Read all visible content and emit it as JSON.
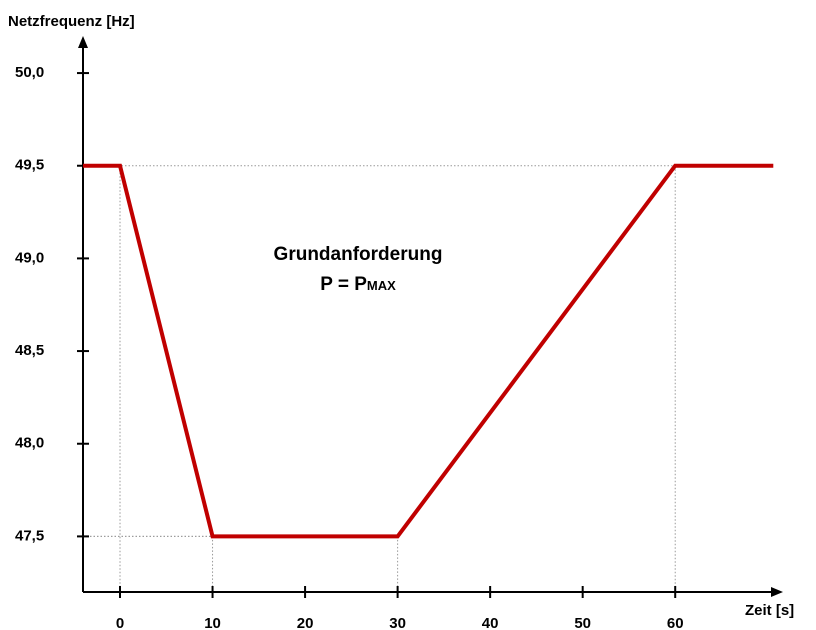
{
  "chart_data": {
    "type": "line",
    "y_label": "Netzfrequenz [Hz]",
    "x_label": "Zeit [s]",
    "annotation": {
      "text": "Grundanforderung",
      "formula": "P = P",
      "subscript": "MAX"
    },
    "x": [
      -4,
      0,
      10,
      30,
      60,
      70.6
    ],
    "series": [
      {
        "color": "#c00000",
        "values": [
          49.5,
          49.5,
          47.5,
          47.5,
          49.5,
          49.5
        ]
      }
    ],
    "xlim": [
      -4,
      71
    ],
    "ylim": [
      47.2,
      50.2
    ],
    "xticks": [
      0,
      10,
      20,
      30,
      40,
      50,
      60
    ],
    "yticks": [
      {
        "value": 47.5,
        "label": "47,5"
      },
      {
        "value": 48,
        "label": "48,0"
      },
      {
        "value": 48.5,
        "label": "48,5"
      },
      {
        "value": 49,
        "label": "49,0"
      },
      {
        "value": 49.5,
        "label": "49,5"
      },
      {
        "value": 50,
        "label": "50,0"
      }
    ]
  }
}
